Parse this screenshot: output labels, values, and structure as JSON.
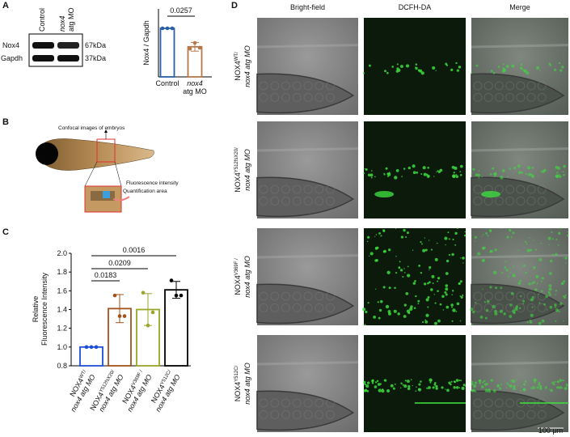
{
  "panels": {
    "a": "A",
    "b": "B",
    "c": "C",
    "d": "D"
  },
  "western_blot": {
    "lanes": [
      [
        "Control"
      ],
      [
        "nox4",
        "atg MO"
      ]
    ],
    "rows": [
      {
        "protein": "Nox4",
        "size": "67kDa"
      },
      {
        "protein": "Gapdh",
        "size": "37kDa"
      }
    ]
  },
  "embryo_diagram": {
    "top_label": "Confocal images of embryos",
    "zoom_label": [
      "Fluorescence intensity",
      "Quantification area"
    ]
  },
  "chart_data": [
    {
      "type": "bar",
      "ylabel": [
        "Nox4 / Gapdh"
      ],
      "categories": [
        [
          {
            "name": "Control"
          }
        ],
        [
          {
            "name": "nox4"
          },
          {
            "name": "atg MO"
          }
        ]
      ],
      "values": [
        1.0,
        0.62
      ],
      "errors": [
        0.0,
        0.09
      ],
      "points": [
        [
          1.0,
          1.0,
          1.0
        ],
        [
          0.58,
          0.7,
          0.6
        ]
      ],
      "colors": [
        "#2a5fa8",
        "#b5784a"
      ],
      "ylim": [
        0,
        1.4
      ],
      "significance": [
        {
          "from": 0,
          "to": 1,
          "label": "0.0257"
        }
      ]
    },
    {
      "type": "bar",
      "ylabel": [
        "Relative",
        "Fluorescence Intensity"
      ],
      "categories": [
        [
          {
            "name": "NOX4",
            "sup": "WT/"
          },
          {
            "name": "nox4 atg MO"
          }
        ],
        [
          {
            "name": "NOX4",
            "sup": "Y512fsX20/"
          },
          {
            "name": "nox4 atg MO"
          }
        ],
        [
          {
            "name": "NOX4",
            "sup": "V369F /"
          },
          {
            "name": "nox4 atg MO"
          }
        ],
        [
          {
            "name": "NOX4",
            "sup": "Y512C/"
          },
          {
            "name": "nox4 atg MO"
          }
        ]
      ],
      "values": [
        1.0,
        1.41,
        1.4,
        1.61
      ],
      "errors": [
        0.0,
        0.15,
        0.17,
        0.09
      ],
      "points": [
        [
          1.0,
          1.0,
          1.0
        ],
        [
          1.55,
          1.33,
          1.33
        ],
        [
          1.58,
          1.23,
          1.37
        ],
        [
          1.71,
          1.55,
          1.55
        ]
      ],
      "colors": [
        "#1f4fd8",
        "#a0521a",
        "#9aa52a",
        "#000000"
      ],
      "ylim": [
        0.8,
        2.0
      ],
      "yticks": [
        {
          "value": 0.8,
          "label": "0.8"
        },
        {
          "value": 1.0,
          "label": "1.0"
        },
        {
          "value": 1.2,
          "label": "1.2"
        },
        {
          "value": 1.4,
          "label": "1.4"
        },
        {
          "value": 1.6,
          "label": "1.6"
        },
        {
          "value": 1.8,
          "label": "1.8"
        },
        {
          "value": 2.0,
          "label": "2.0"
        }
      ],
      "significance": [
        {
          "from": 0,
          "to": 1,
          "label": "0.0183"
        },
        {
          "from": 0,
          "to": 2,
          "label": "0.0209"
        },
        {
          "from": 0,
          "to": 3,
          "label": "0.0016"
        }
      ]
    }
  ],
  "imaging": {
    "columns": [
      "Bright-field",
      "DCFH-DA",
      "Merge"
    ],
    "rows": [
      [
        {
          "name": "NOX4",
          "sup": "WT/"
        },
        {
          "name": "nox4 atg MO"
        }
      ],
      [
        {
          "name": "NOX4",
          "sup": "Y512fsX20/"
        },
        {
          "name": "nox4 atg MO"
        }
      ],
      [
        {
          "name": "NOX4",
          "sup": "V369F /"
        },
        {
          "name": "nox4 atg MO"
        }
      ],
      [
        {
          "name": "NOX4",
          "sup": "Y512C/"
        },
        {
          "name": "nox4 atg MO"
        }
      ]
    ],
    "scale_bar": "100 µm"
  }
}
